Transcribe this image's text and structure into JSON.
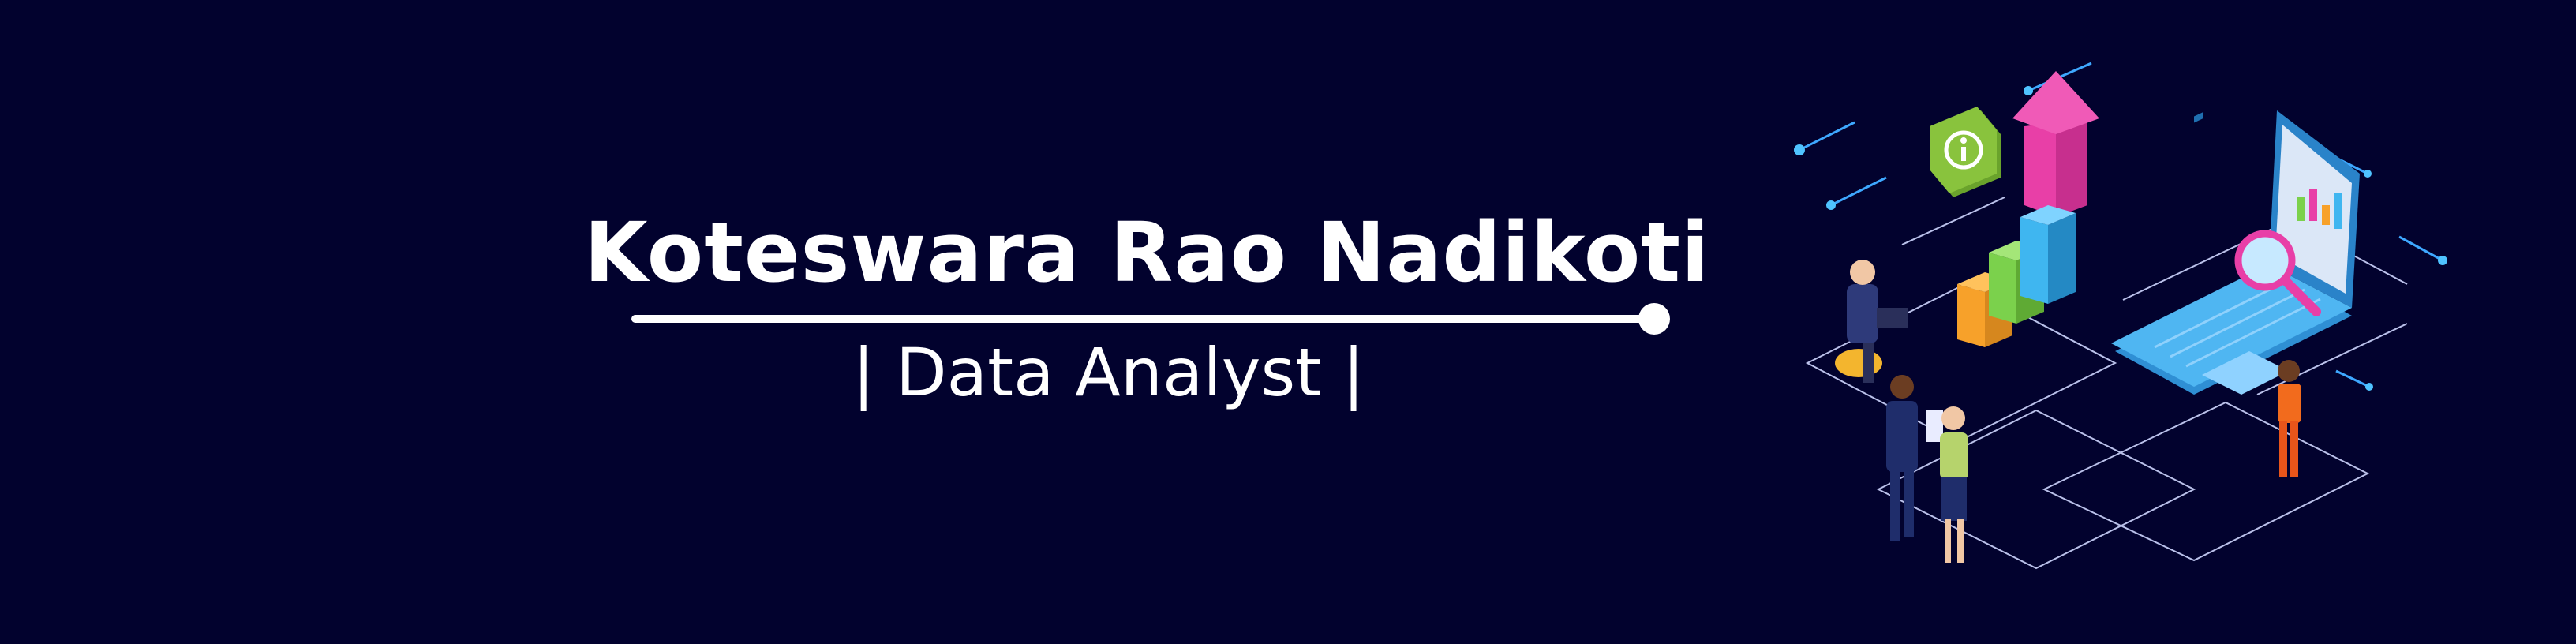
{
  "profile": {
    "name": "Koteswara Rao Nadikoti",
    "role": "| Data Analyst |"
  },
  "colors": {
    "background": "#02022e",
    "text": "#ffffff",
    "laptop": "#4fb6f2",
    "arrow": "#e83fa7",
    "bar_orange": "#f7a12a",
    "bar_green": "#7bd14c",
    "bar_blue": "#3fb6f0",
    "info_badge": "#89c33d"
  },
  "illustration": {
    "icons": [
      "info-icon",
      "magnifier-icon",
      "growth-arrow-icon",
      "bar-chart-icon",
      "laptop-icon"
    ]
  }
}
